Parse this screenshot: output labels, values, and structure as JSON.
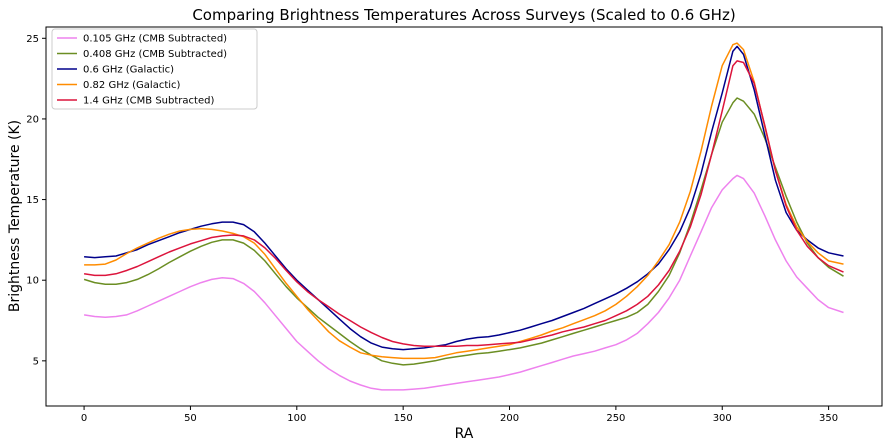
{
  "chart_data": {
    "type": "line",
    "title": "Comparing Brightness Temperatures Across Surveys (Scaled to 0.6 GHz)",
    "xlabel": "RA",
    "ylabel": "Brightness Temperature (K)",
    "xlim": [
      -17.9,
      375.1
    ],
    "ylim": [
      2.2,
      25.7
    ],
    "xticks": [
      0,
      50,
      100,
      150,
      200,
      250,
      300,
      350
    ],
    "yticks": [
      5,
      10,
      15,
      20,
      25
    ],
    "grid": false,
    "legend_position": "top-left",
    "x": [
      0,
      5,
      10,
      15,
      20,
      25,
      30,
      35,
      40,
      45,
      50,
      55,
      60,
      65,
      70,
      75,
      80,
      85,
      90,
      95,
      100,
      105,
      110,
      115,
      120,
      125,
      130,
      135,
      140,
      145,
      150,
      155,
      160,
      165,
      170,
      175,
      180,
      185,
      190,
      195,
      200,
      205,
      210,
      215,
      220,
      225,
      230,
      235,
      240,
      245,
      250,
      255,
      260,
      265,
      270,
      275,
      280,
      285,
      290,
      295,
      300,
      305,
      307,
      310,
      315,
      320,
      325,
      330,
      335,
      340,
      345,
      350,
      357
    ],
    "series": [
      {
        "name": "0.105 GHz (CMB Subtracted)",
        "color": "#ee82ee",
        "values": [
          7.85,
          7.75,
          7.7,
          7.75,
          7.85,
          8.1,
          8.4,
          8.7,
          9.0,
          9.3,
          9.6,
          9.85,
          10.05,
          10.15,
          10.1,
          9.8,
          9.3,
          8.6,
          7.8,
          7.0,
          6.2,
          5.6,
          5.0,
          4.5,
          4.1,
          3.75,
          3.5,
          3.3,
          3.2,
          3.2,
          3.2,
          3.25,
          3.3,
          3.4,
          3.5,
          3.6,
          3.7,
          3.8,
          3.9,
          4.0,
          4.15,
          4.3,
          4.5,
          4.7,
          4.9,
          5.1,
          5.3,
          5.45,
          5.6,
          5.8,
          6.0,
          6.3,
          6.7,
          7.3,
          8.0,
          8.9,
          10.0,
          11.5,
          13.0,
          14.5,
          15.6,
          16.3,
          16.5,
          16.3,
          15.4,
          14.0,
          12.5,
          11.2,
          10.2,
          9.5,
          8.8,
          8.3,
          8.0
        ]
      },
      {
        "name": "0.408 GHz (CMB Subtracted)",
        "color": "#6b8e23",
        "values": [
          10.05,
          9.85,
          9.75,
          9.75,
          9.85,
          10.05,
          10.35,
          10.7,
          11.1,
          11.45,
          11.8,
          12.1,
          12.35,
          12.5,
          12.5,
          12.3,
          11.85,
          11.2,
          10.4,
          9.6,
          8.9,
          8.3,
          7.7,
          7.2,
          6.7,
          6.2,
          5.75,
          5.35,
          5.0,
          4.85,
          4.75,
          4.8,
          4.9,
          5.0,
          5.15,
          5.25,
          5.35,
          5.45,
          5.5,
          5.6,
          5.7,
          5.8,
          5.95,
          6.1,
          6.3,
          6.5,
          6.7,
          6.9,
          7.1,
          7.3,
          7.5,
          7.7,
          8.0,
          8.5,
          9.3,
          10.3,
          11.7,
          13.5,
          15.6,
          17.8,
          19.8,
          21.0,
          21.3,
          21.1,
          20.3,
          18.8,
          17.0,
          15.2,
          13.6,
          12.3,
          11.4,
          10.8,
          10.25
        ]
      },
      {
        "name": "0.6 GHz (Galactic)",
        "color": "#00008b",
        "values": [
          11.45,
          11.4,
          11.45,
          11.5,
          11.7,
          11.9,
          12.2,
          12.45,
          12.7,
          12.95,
          13.15,
          13.35,
          13.5,
          13.6,
          13.6,
          13.45,
          13.0,
          12.3,
          11.5,
          10.7,
          10.0,
          9.4,
          8.8,
          8.2,
          7.6,
          7.0,
          6.5,
          6.1,
          5.85,
          5.75,
          5.7,
          5.75,
          5.8,
          5.9,
          6.0,
          6.2,
          6.35,
          6.45,
          6.5,
          6.6,
          6.75,
          6.9,
          7.1,
          7.3,
          7.5,
          7.75,
          8.0,
          8.25,
          8.55,
          8.85,
          9.15,
          9.5,
          9.9,
          10.4,
          11.0,
          11.9,
          13.0,
          14.5,
          16.6,
          19.2,
          21.6,
          24.2,
          24.5,
          24.0,
          21.8,
          19.0,
          16.2,
          14.2,
          13.1,
          12.5,
          12.0,
          11.7,
          11.5
        ]
      },
      {
        "name": "0.82 GHz (Galactic)",
        "color": "#ff8c00",
        "values": [
          10.95,
          10.95,
          11.0,
          11.25,
          11.65,
          12.0,
          12.3,
          12.6,
          12.85,
          13.05,
          13.15,
          13.2,
          13.15,
          13.05,
          12.9,
          12.7,
          12.3,
          11.6,
          10.7,
          9.8,
          9.0,
          8.2,
          7.5,
          6.8,
          6.25,
          5.85,
          5.5,
          5.35,
          5.25,
          5.2,
          5.15,
          5.15,
          5.15,
          5.2,
          5.35,
          5.5,
          5.6,
          5.7,
          5.8,
          5.9,
          6.0,
          6.2,
          6.4,
          6.6,
          6.85,
          7.05,
          7.3,
          7.55,
          7.8,
          8.1,
          8.5,
          9.0,
          9.6,
          10.3,
          11.2,
          12.2,
          13.6,
          15.5,
          18.0,
          20.8,
          23.3,
          24.6,
          24.7,
          24.3,
          22.3,
          19.5,
          16.8,
          14.7,
          13.3,
          12.4,
          11.7,
          11.2,
          11.0
        ]
      },
      {
        "name": "1.4 GHz (CMB Subtracted)",
        "color": "#dc143c",
        "values": [
          10.4,
          10.3,
          10.3,
          10.4,
          10.6,
          10.85,
          11.15,
          11.45,
          11.75,
          12.0,
          12.25,
          12.45,
          12.65,
          12.75,
          12.8,
          12.75,
          12.5,
          12.0,
          11.35,
          10.6,
          9.9,
          9.3,
          8.8,
          8.35,
          7.9,
          7.5,
          7.1,
          6.75,
          6.45,
          6.2,
          6.05,
          5.95,
          5.9,
          5.9,
          5.9,
          5.9,
          5.95,
          5.95,
          6.0,
          6.05,
          6.1,
          6.15,
          6.3,
          6.45,
          6.6,
          6.8,
          6.95,
          7.1,
          7.3,
          7.5,
          7.8,
          8.1,
          8.5,
          9.0,
          9.7,
          10.6,
          11.8,
          13.3,
          15.3,
          17.8,
          20.5,
          23.3,
          23.6,
          23.5,
          22.2,
          19.6,
          16.8,
          14.6,
          13.1,
          12.1,
          11.4,
          10.9,
          10.5
        ]
      }
    ]
  }
}
